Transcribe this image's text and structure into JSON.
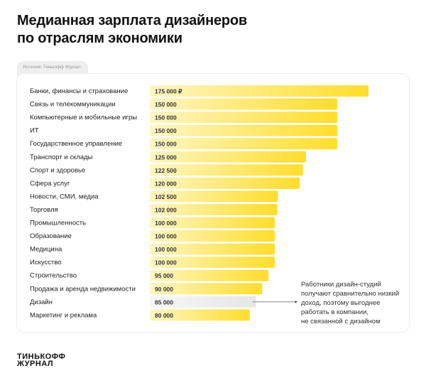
{
  "header": {
    "title_line1": "Медианная зарплата дизайнеров",
    "title_line2": "по отраслям экономики"
  },
  "source": "Источник: Тинькофф Журнал",
  "note": [
    "Работники дизайн-студий",
    "получают сравнительно низкий",
    "доход, поэтому выгоднее",
    "работать в компании,",
    "не связанной с дизайном"
  ],
  "logo": {
    "line1": "ТИНЬКОФФ",
    "line2": "ЖУРНАЛ"
  },
  "colors": {
    "bar_start": "#fff6c4",
    "bar_end": "#ffdd2d",
    "highlight_start": "#f7f7f7",
    "highlight_end": "#e6e6e6"
  },
  "chart_data": {
    "type": "bar",
    "orientation": "horizontal",
    "categories": [
      "Банки, финансы и страхование",
      "Связь и телекоммуникации",
      "Компьютерные и мобильные игры",
      "ИТ",
      "Государственное управление",
      "Транспорт и склады",
      "Спорт и здоровье",
      "Сфера услуг",
      "Новости, СМИ, медиа",
      "Торговля",
      "Промышленность",
      "Образование",
      "Медицина",
      "Искусство",
      "Строительство",
      "Продажа и аренда недвижимости",
      "Дизайн",
      "Маркетинг и реклама"
    ],
    "values": [
      175000,
      150000,
      150000,
      150000,
      150000,
      125000,
      122500,
      120000,
      102500,
      102000,
      100000,
      100000,
      100000,
      100000,
      95000,
      90000,
      85000,
      80000
    ],
    "value_labels": [
      "175 000 ₽",
      "150 000",
      "150 000",
      "150 000",
      "150 000",
      "125 000",
      "122 500",
      "120 000",
      "102 500",
      "102 000",
      "100 000",
      "100 000",
      "100 000",
      "100 000",
      "95 000",
      "90 000",
      "85 000",
      "80 000"
    ],
    "highlighted": "Дизайн",
    "xlim": [
      0,
      175000
    ],
    "grid": false
  }
}
